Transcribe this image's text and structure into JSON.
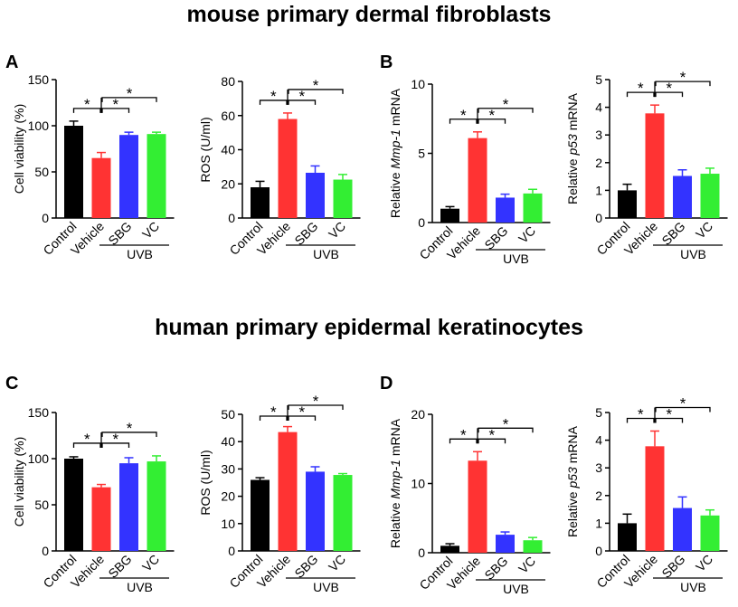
{
  "titles": {
    "top": "mouse primary dermal fibroblasts",
    "bottom": "human primary epidermal keratinocytes"
  },
  "panel_letters": [
    "A",
    "B",
    "C",
    "D"
  ],
  "colors": {
    "Control": "#000000",
    "Vehicle": "#ff3333",
    "SBG": "#3333ff",
    "VC": "#33ee33"
  },
  "chart_data": [
    {
      "id": "A-viability",
      "panel": "A",
      "type": "bar",
      "title": "",
      "ylabel": "Cell viability (%)",
      "ylabel_italic": "",
      "ylabel_suffix": "",
      "ylim": [
        0,
        150
      ],
      "yticks": [
        0,
        50,
        100,
        150
      ],
      "categories": [
        "Control",
        "Vehicle",
        "SBG",
        "VC"
      ],
      "values": [
        100,
        65,
        90,
        91
      ],
      "errors": [
        5,
        6,
        3,
        2
      ],
      "group_label": "UVB",
      "significance": "*"
    },
    {
      "id": "A-ros",
      "panel": "A",
      "type": "bar",
      "title": "",
      "ylabel": "ROS (U/ml)",
      "ylabel_italic": "",
      "ylabel_suffix": "",
      "ylim": [
        0,
        80
      ],
      "yticks": [
        0,
        20,
        40,
        60,
        80
      ],
      "categories": [
        "Control",
        "Vehicle",
        "SBG",
        "VC"
      ],
      "values": [
        18,
        58,
        26.5,
        22.5
      ],
      "errors": [
        3.5,
        3.5,
        4,
        3
      ],
      "group_label": "UVB",
      "significance": "*"
    },
    {
      "id": "B-mmp1",
      "panel": "B",
      "type": "bar",
      "title": "",
      "ylabel": "Relative ",
      "ylabel_italic": "Mmp-1",
      "ylabel_suffix": " mRNA",
      "ylim": [
        0,
        10
      ],
      "yticks": [
        0,
        5,
        10
      ],
      "categories": [
        "Control",
        "Vehicle",
        "SBG",
        "VC"
      ],
      "values": [
        1,
        6.1,
        1.8,
        2.1
      ],
      "errors": [
        0.15,
        0.45,
        0.25,
        0.3
      ],
      "group_label": "UVB",
      "significance": "*"
    },
    {
      "id": "B-p53",
      "panel": "B",
      "type": "bar",
      "title": "",
      "ylabel": "Relative ",
      "ylabel_italic": "p53",
      "ylabel_suffix": " mRNA",
      "ylim": [
        0,
        5
      ],
      "yticks": [
        0,
        1,
        2,
        3,
        4,
        5
      ],
      "categories": [
        "Control",
        "Vehicle",
        "SBG",
        "VC"
      ],
      "values": [
        1,
        3.78,
        1.52,
        1.6
      ],
      "errors": [
        0.22,
        0.3,
        0.22,
        0.2
      ],
      "group_label": "UVB",
      "significance": "*"
    },
    {
      "id": "C-viability",
      "panel": "C",
      "type": "bar",
      "title": "",
      "ylabel": "Cell viability (%)",
      "ylabel_italic": "",
      "ylabel_suffix": "",
      "ylim": [
        0,
        150
      ],
      "yticks": [
        0,
        50,
        100,
        150
      ],
      "categories": [
        "Control",
        "Vehicle",
        "SBG",
        "VC"
      ],
      "values": [
        100,
        69,
        95,
        97
      ],
      "errors": [
        2,
        3,
        6,
        6
      ],
      "group_label": "UVB",
      "significance": "*"
    },
    {
      "id": "C-ros",
      "panel": "C",
      "type": "bar",
      "title": "",
      "ylabel": "ROS (U/ml)",
      "ylabel_italic": "",
      "ylabel_suffix": "",
      "ylim": [
        0,
        50
      ],
      "yticks": [
        0,
        10,
        20,
        30,
        40,
        50
      ],
      "categories": [
        "Control",
        "Vehicle",
        "SBG",
        "VC"
      ],
      "values": [
        26,
        43.5,
        29,
        27.8
      ],
      "errors": [
        0.8,
        2,
        1.8,
        0.5
      ],
      "group_label": "UVB",
      "significance": "*"
    },
    {
      "id": "D-mmp1",
      "panel": "D",
      "type": "bar",
      "title": "",
      "ylabel": "Relative ",
      "ylabel_italic": "Mmp-1",
      "ylabel_suffix": " mRNA",
      "ylim": [
        0,
        20
      ],
      "yticks": [
        0,
        10,
        20
      ],
      "categories": [
        "Control",
        "Vehicle",
        "SBG",
        "VC"
      ],
      "values": [
        1,
        13.3,
        2.6,
        1.8
      ],
      "errors": [
        0.3,
        1.3,
        0.4,
        0.4
      ],
      "group_label": "UVB",
      "significance": "*"
    },
    {
      "id": "D-p53",
      "panel": "D",
      "type": "bar",
      "title": "",
      "ylabel": "Relative ",
      "ylabel_italic": "p53",
      "ylabel_suffix": " mRNA",
      "ylim": [
        0,
        5
      ],
      "yticks": [
        0,
        1,
        2,
        3,
        4,
        5
      ],
      "categories": [
        "Control",
        "Vehicle",
        "SBG",
        "VC"
      ],
      "values": [
        1,
        3.78,
        1.55,
        1.28
      ],
      "errors": [
        0.33,
        0.55,
        0.4,
        0.2
      ],
      "group_label": "UVB",
      "significance": "*"
    }
  ]
}
